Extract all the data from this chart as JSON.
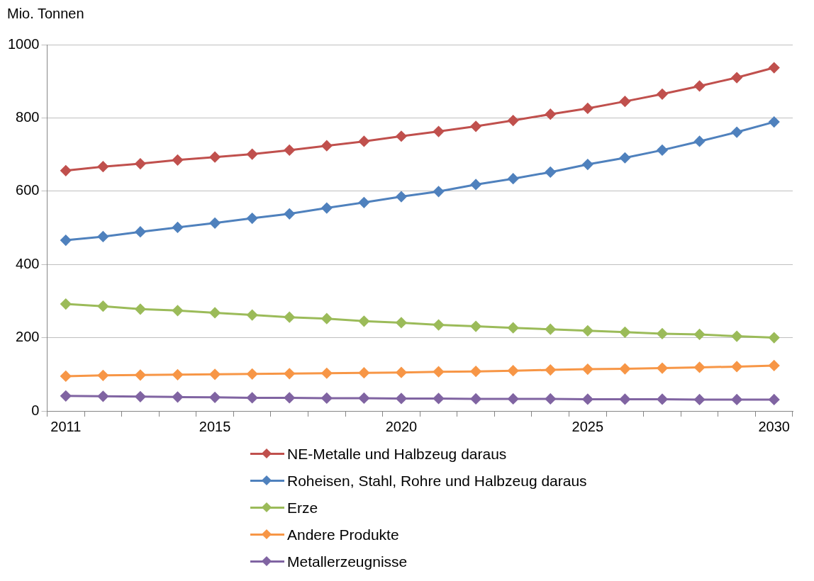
{
  "chart_data": {
    "type": "line",
    "ylabel": "Mio. Tonnen",
    "categories": [
      "2011",
      null,
      null,
      null,
      "2015",
      null,
      null,
      null,
      null,
      "2020",
      null,
      null,
      null,
      null,
      "2025",
      null,
      null,
      null,
      null,
      "2030"
    ],
    "ylim": [
      0,
      1000
    ],
    "yticks": [
      0,
      200,
      400,
      600,
      800,
      1000
    ],
    "grid": "y",
    "legend": "bottom",
    "marker": "diamond",
    "line_style": "solid",
    "series": [
      {
        "name": "NE-Metalle und Halbzeug daraus",
        "color": "#c0504d",
        "values": [
          656,
          667,
          675,
          685,
          693,
          701,
          712,
          724,
          736,
          750,
          763,
          777,
          793,
          810,
          826,
          845,
          865,
          887,
          910,
          937
        ]
      },
      {
        "name": "Roheisen, Stahl, Rohre und Halbzeug daraus",
        "color": "#4f81bd",
        "values": [
          466,
          476,
          489,
          501,
          513,
          526,
          538,
          554,
          569,
          585,
          599,
          618,
          634,
          652,
          673,
          691,
          712,
          736,
          761,
          789
        ]
      },
      {
        "name": "Erze",
        "color": "#9bbb59",
        "values": [
          292,
          286,
          278,
          274,
          268,
          262,
          256,
          252,
          245,
          241,
          235,
          231,
          227,
          223,
          219,
          215,
          211,
          209,
          204,
          200
        ]
      },
      {
        "name": "Andere Produkte",
        "color": "#f79646",
        "values": [
          95,
          97,
          98,
          99,
          100,
          101,
          102,
          103,
          104,
          105,
          107,
          108,
          110,
          112,
          114,
          115,
          117,
          119,
          121,
          124
        ]
      },
      {
        "name": "Metallerzeugnisse",
        "color": "#8064a2",
        "values": [
          41,
          40,
          39,
          38,
          37,
          36,
          36,
          35,
          35,
          34,
          34,
          33,
          33,
          33,
          32,
          32,
          32,
          31,
          31,
          31
        ]
      }
    ]
  }
}
